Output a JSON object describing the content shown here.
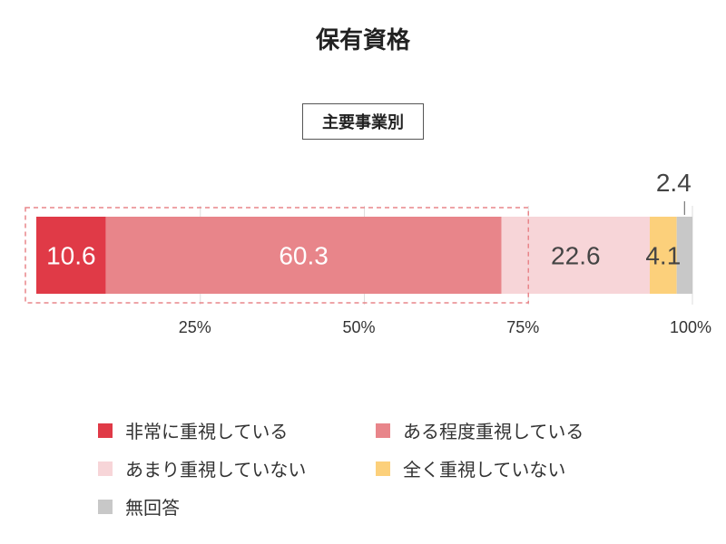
{
  "title": "保有資格",
  "subtitle": "主要事業別",
  "chart_data": {
    "type": "bar",
    "orientation": "horizontal",
    "stacked": true,
    "xlim": [
      0,
      100
    ],
    "ticks": [
      "25%",
      "50%",
      "75%",
      "100%"
    ],
    "tick_values": [
      25,
      50,
      75,
      100
    ],
    "categories": [
      "主要事業別"
    ],
    "grid": true,
    "legend_position": "bottom",
    "series": [
      {
        "name": "非常に重視している",
        "values": [
          10.6
        ],
        "label": "10.6",
        "color": "#e03a47",
        "label_color": "#ffffff"
      },
      {
        "name": "ある程度重視している",
        "values": [
          60.3
        ],
        "label": "60.3",
        "color": "#e8858a",
        "label_color": "#ffffff"
      },
      {
        "name": "あまり重視していない",
        "values": [
          22.6
        ],
        "label": "22.6",
        "color": "#f7d5d8",
        "label_color": "#444444"
      },
      {
        "name": "全く重視していない",
        "values": [
          4.1
        ],
        "label": "4.1",
        "color": "#fcd07b",
        "label_color": "#444444"
      },
      {
        "name": "無回答",
        "values": [
          2.4
        ],
        "label": "2.4",
        "color": "#c8c8c8",
        "label_color": "#444444"
      }
    ],
    "highlight_range": [
      0,
      75
    ],
    "highlight_color": "#e8858a"
  }
}
